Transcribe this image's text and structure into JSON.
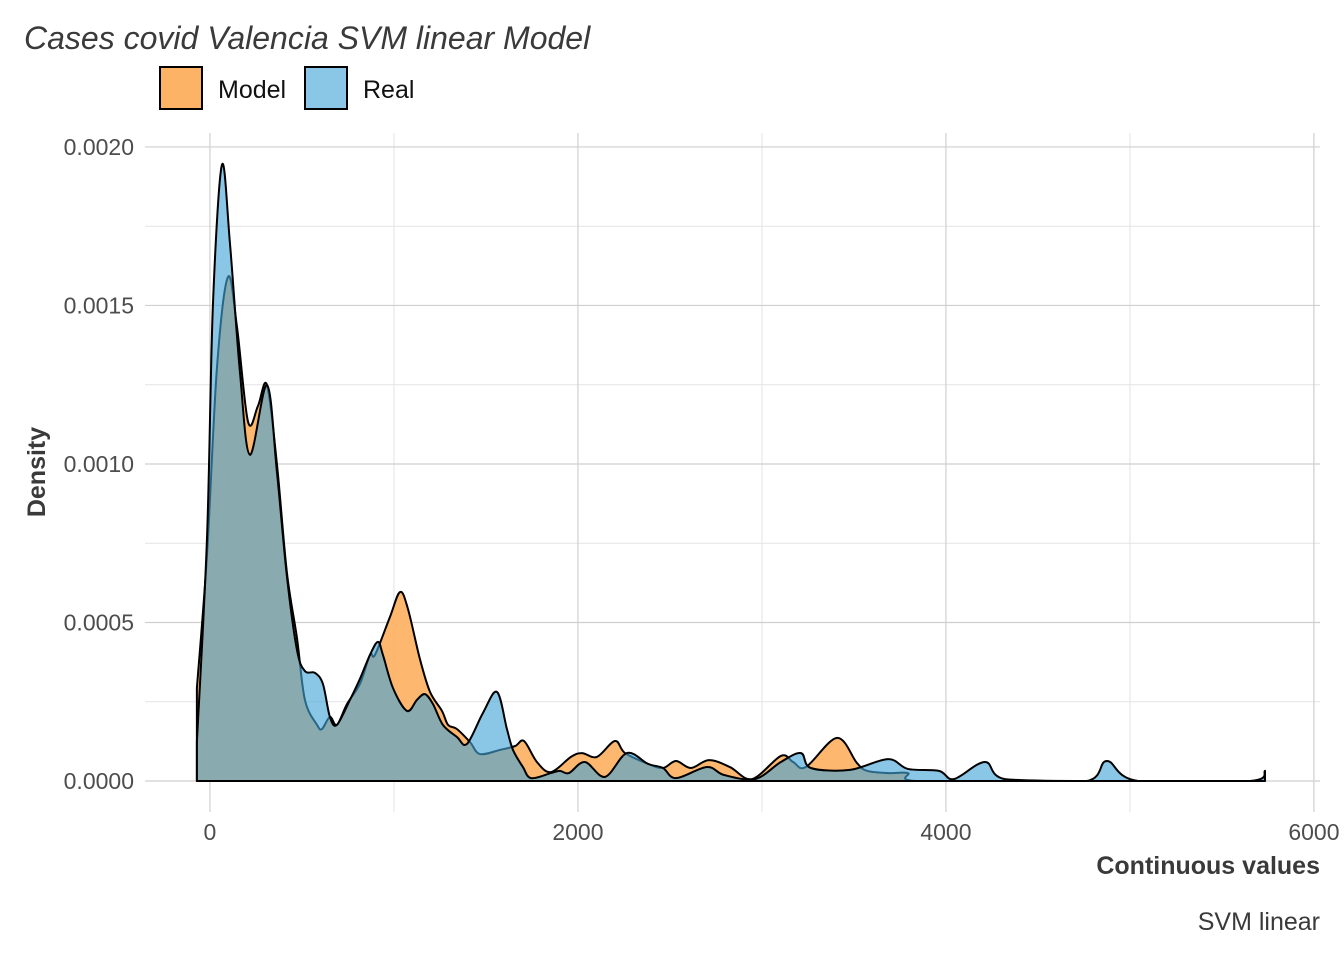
{
  "chart_data": {
    "type": "area",
    "subtype": "density",
    "title": "Cases covid Valencia SVM linear Model",
    "xlabel": "Continuous values",
    "ylabel": "Density",
    "caption": "SVM linear",
    "xlim": [
      -353,
      6033
    ],
    "ylim": [
      -9.78e-05,
      0.002044
    ],
    "x_ticks": [
      0,
      2000,
      4000,
      6000
    ],
    "x_tick_labels": [
      "0",
      "2000",
      "4000",
      "6000"
    ],
    "x_minor_ticks": [
      1000,
      3000,
      5000
    ],
    "y_ticks": [
      0,
      0.0005,
      0.001,
      0.0015,
      0.002
    ],
    "y_tick_labels": [
      "0.0000",
      "0.0005",
      "0.0010",
      "0.0015",
      "0.0020"
    ],
    "y_minor_ticks": [
      0.00025,
      0.00075,
      0.00125,
      0.00175
    ],
    "grid": true,
    "legend": {
      "position": "top-left",
      "entries": [
        "Model",
        "Real"
      ]
    },
    "series": [
      {
        "name": "Model",
        "color": "#FDB366",
        "x": [
          -71,
          -16,
          38,
          98,
          147,
          207,
          261,
          310,
          364,
          418,
          473,
          516,
          582,
          609,
          652,
          690,
          745,
          815,
          870,
          897,
          978,
          1033,
          1076,
          1141,
          1196,
          1261,
          1294,
          1342,
          1413,
          1467,
          1576,
          1658,
          1707,
          1777,
          1853,
          1962,
          2022,
          2103,
          2201,
          2256,
          2381,
          2462,
          2533,
          2614,
          2712,
          2826,
          2946,
          3103,
          3169,
          3239,
          3408,
          3516,
          3571,
          3685,
          3793,
          3837,
          4500,
          5734
        ],
        "y": [
          0.000293,
          0.000713,
          0.001303,
          0.00159,
          0.001432,
          0.001133,
          0.001183,
          0.001249,
          0.001,
          0.000659,
          0.000451,
          0.000256,
          0.000177,
          0.000164,
          0.000202,
          0.000177,
          0.000243,
          0.000306,
          0.000398,
          0.000398,
          0.000517,
          0.000596,
          0.000543,
          0.000385,
          0.000281,
          0.000221,
          0.000177,
          0.000164,
          0.000123,
          8.5e-05,
          9.8e-05,
          0.00011,
          0.000126,
          6e-05,
          2.8e-05,
          7.6e-05,
          8.8e-05,
          7.6e-05,
          0.000126,
          8.8e-05,
          5.4e-05,
          4.1e-05,
          6.3e-05,
          4.1e-05,
          6.6e-05,
          4.4e-05,
          6e-06,
          7.9e-05,
          6e-05,
          4.4e-05,
          0.000136,
          5.7e-05,
          3.2e-05,
          2.5e-05,
          2.5e-05,
          0,
          0,
          0
        ]
      },
      {
        "name": "Real",
        "color": "#42A3D7",
        "x": [
          -71,
          -16,
          16,
          65,
          109,
          163,
          217,
          310,
          364,
          418,
          473,
          516,
          571,
          614,
          652,
          690,
          761,
          815,
          870,
          913,
          940,
          995,
          1071,
          1125,
          1168,
          1212,
          1266,
          1342,
          1397,
          1484,
          1560,
          1614,
          1647,
          1701,
          1745,
          1853,
          1902,
          1951,
          2038,
          2147,
          2266,
          2381,
          2462,
          2533,
          2701,
          2794,
          2962,
          3103,
          3212,
          3266,
          3478,
          3685,
          3793,
          3962,
          4043,
          4212,
          4321,
          4766,
          4875,
          5044,
          5652,
          5734
        ],
        "y": [
          0.000123,
          0.000767,
          0.001499,
          0.001943,
          0.001694,
          0.00129,
          0.001029,
          0.001249,
          0.000975,
          0.000647,
          0.000413,
          0.000347,
          0.000341,
          0.000306,
          0.000202,
          0.000177,
          0.000256,
          0.000322,
          0.000398,
          0.000439,
          0.000398,
          0.000293,
          0.000221,
          0.000256,
          0.000274,
          0.000243,
          0.000177,
          0.000139,
          0.000117,
          0.000215,
          0.000281,
          0.000164,
          9.8e-05,
          4.4e-05,
          9e-06,
          2.5e-05,
          3.2e-05,
          2.5e-05,
          6e-05,
          1.3e-05,
          8.8e-05,
          5.4e-05,
          4.1e-05,
          9e-06,
          4.4e-05,
          1.9e-05,
          6e-06,
          6e-05,
          8.8e-05,
          4.1e-05,
          3.5e-05,
          6.9e-05,
          3.8e-05,
          3.2e-05,
          6e-06,
          6e-05,
          6e-06,
          0,
          6.3e-05,
          0,
          0,
          3.2e-05
        ]
      }
    ]
  }
}
